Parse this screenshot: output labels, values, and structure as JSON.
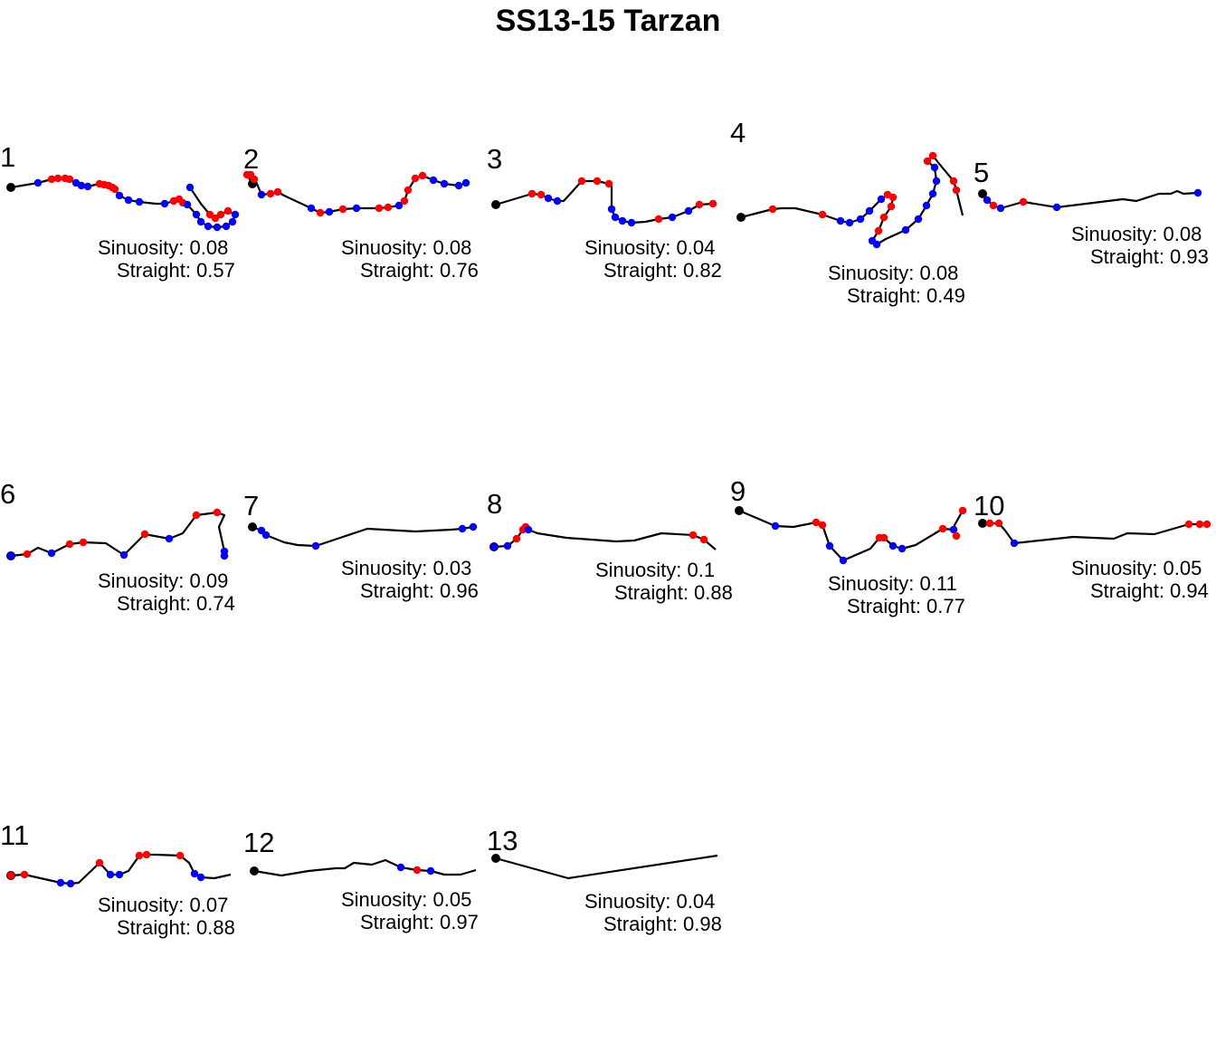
{
  "title": "SS13-15 Tarzan",
  "colors": {
    "path": "#000000",
    "start": "#000000",
    "red": "#ff0000",
    "blue": "#0000ff"
  },
  "chart_data": {
    "type": "scatter",
    "description_keys": "Each track is a sequence of points [x, y, state]; state: r=red, b=blue, k=path vertex only. Coordinates are in the arbitrary position units of the track plot, not pixels.",
    "panels": [
      {
        "label": "1",
        "sinuosity": "Sinuosity: 0.08",
        "straight": "Straight: 0.57",
        "track": [
          [
            0,
            0,
            "k"
          ],
          [
            30,
            -5,
            "b"
          ],
          [
            45,
            -9,
            "r"
          ],
          [
            52,
            -10,
            "r"
          ],
          [
            60,
            -10,
            "r"
          ],
          [
            65,
            -9,
            "r"
          ],
          [
            72,
            -5,
            "b"
          ],
          [
            78,
            -2,
            "b"
          ],
          [
            85,
            -1,
            "b"
          ],
          [
            98,
            -4,
            "r"
          ],
          [
            103,
            -3,
            "r"
          ],
          [
            108,
            -2,
            "r"
          ],
          [
            112,
            0,
            "r"
          ],
          [
            115,
            2,
            "r"
          ],
          [
            120,
            9,
            "b"
          ],
          [
            130,
            14,
            "b"
          ],
          [
            142,
            16,
            "b"
          ],
          [
            160,
            18,
            "k"
          ],
          [
            170,
            18,
            "b"
          ],
          [
            180,
            15,
            "r"
          ],
          [
            186,
            13,
            "r"
          ],
          [
            190,
            17,
            "r"
          ],
          [
            195,
            19,
            "b"
          ],
          [
            205,
            30,
            "b"
          ],
          [
            210,
            38,
            "b"
          ],
          [
            218,
            43,
            "b"
          ],
          [
            228,
            44,
            "b"
          ],
          [
            238,
            43,
            "b"
          ],
          [
            245,
            38,
            "b"
          ],
          [
            248,
            30,
            "b"
          ],
          [
            240,
            26,
            "r"
          ],
          [
            232,
            30,
            "r"
          ],
          [
            226,
            34,
            "r"
          ],
          [
            220,
            30,
            "r"
          ],
          [
            210,
            18,
            "k"
          ],
          [
            198,
            0,
            "b"
          ]
        ]
      },
      {
        "label": "2",
        "sinuosity": "Sinuosity: 0.08",
        "straight": "Straight: 0.76",
        "track": [
          [
            10,
            3,
            "k"
          ],
          [
            4,
            -7,
            "r"
          ],
          [
            8,
            -7,
            "r"
          ],
          [
            12,
            -2,
            "r"
          ],
          [
            15,
            3,
            "k"
          ],
          [
            20,
            15,
            "b"
          ],
          [
            30,
            14,
            "r"
          ],
          [
            38,
            12,
            "r"
          ],
          [
            45,
            16,
            "k"
          ],
          [
            75,
            30,
            "b"
          ],
          [
            85,
            35,
            "r"
          ],
          [
            95,
            34,
            "b"
          ],
          [
            110,
            31,
            "r"
          ],
          [
            125,
            30,
            "b"
          ],
          [
            140,
            30,
            "k"
          ],
          [
            150,
            30,
            "r"
          ],
          [
            160,
            29,
            "r"
          ],
          [
            172,
            27,
            "b"
          ],
          [
            178,
            22,
            "r"
          ],
          [
            182,
            10,
            "r"
          ],
          [
            190,
            -3,
            "r"
          ],
          [
            198,
            -6,
            "r"
          ],
          [
            210,
            -1,
            "b"
          ],
          [
            222,
            3,
            "b"
          ],
          [
            238,
            5,
            "b"
          ],
          [
            246,
            2,
            "b"
          ]
        ]
      },
      {
        "label": "3",
        "sinuosity": "Sinuosity: 0.04",
        "straight": "Straight: 0.82",
        "track": [
          [
            0,
            0,
            "k"
          ],
          [
            40,
            -12,
            "r"
          ],
          [
            50,
            -11,
            "r"
          ],
          [
            58,
            -7,
            "b"
          ],
          [
            68,
            -4,
            "b"
          ],
          [
            75,
            -4,
            "k"
          ],
          [
            95,
            -26,
            "r"
          ],
          [
            112,
            -26,
            "r"
          ],
          [
            125,
            -23,
            "r"
          ],
          [
            128,
            -20,
            "k"
          ],
          [
            128,
            5,
            "b"
          ],
          [
            132,
            14,
            "b"
          ],
          [
            140,
            18,
            "b"
          ],
          [
            150,
            20,
            "b"
          ],
          [
            165,
            19,
            "k"
          ],
          [
            180,
            16,
            "r"
          ],
          [
            195,
            14,
            "b"
          ],
          [
            213,
            7,
            "b"
          ],
          [
            225,
            0,
            "r"
          ],
          [
            240,
            -1,
            "r"
          ],
          [
            244,
            0,
            "k"
          ]
        ]
      },
      {
        "label": "4",
        "sinuosity": "Sinuosity: 0.08",
        "straight": "Straight: 0.49",
        "track": [
          [
            0,
            0,
            "k"
          ],
          [
            35,
            -9,
            "r"
          ],
          [
            45,
            -10,
            "k"
          ],
          [
            60,
            -10,
            "k"
          ],
          [
            90,
            -3,
            "r"
          ],
          [
            110,
            4,
            "b"
          ],
          [
            120,
            6,
            "b"
          ],
          [
            132,
            2,
            "b"
          ],
          [
            142,
            -7,
            "b"
          ],
          [
            155,
            -20,
            "b"
          ],
          [
            162,
            -25,
            "r"
          ],
          [
            168,
            -22,
            "r"
          ],
          [
            166,
            -12,
            "r"
          ],
          [
            158,
            0,
            "r"
          ],
          [
            152,
            15,
            "r"
          ],
          [
            145,
            26,
            "b"
          ],
          [
            150,
            30,
            "b"
          ],
          [
            160,
            24,
            "k"
          ],
          [
            182,
            14,
            "b"
          ],
          [
            196,
            2,
            "b"
          ],
          [
            205,
            -13,
            "b"
          ],
          [
            212,
            -26,
            "b"
          ],
          [
            216,
            -40,
            "b"
          ],
          [
            214,
            -55,
            "b"
          ],
          [
            206,
            -62,
            "r"
          ],
          [
            212,
            -68,
            "r"
          ],
          [
            220,
            -58,
            "k"
          ],
          [
            235,
            -40,
            "r"
          ],
          [
            238,
            -30,
            "r"
          ],
          [
            245,
            -2,
            "k"
          ]
        ]
      },
      {
        "label": "5",
        "sinuosity": "Sinuosity: 0.08",
        "straight": "Straight: 0.93",
        "track": [
          [
            0,
            0,
            "k"
          ],
          [
            5,
            7,
            "b"
          ],
          [
            12,
            13,
            "r"
          ],
          [
            20,
            16,
            "b"
          ],
          [
            45,
            9,
            "r"
          ],
          [
            82,
            15,
            "b"
          ],
          [
            155,
            6,
            "k"
          ],
          [
            170,
            8,
            "k"
          ],
          [
            195,
            0,
            "k"
          ],
          [
            208,
            0,
            "k"
          ],
          [
            215,
            -3,
            "k"
          ],
          [
            222,
            0,
            "k"
          ],
          [
            238,
            -1,
            "b"
          ]
        ]
      },
      {
        "label": "6",
        "sinuosity": "Sinuosity: 0.09",
        "straight": "Straight: 0.74",
        "track": [
          [
            0,
            0,
            "b"
          ],
          [
            18,
            -2,
            "r"
          ],
          [
            30,
            -9,
            "k"
          ],
          [
            45,
            -3,
            "b"
          ],
          [
            65,
            -13,
            "r"
          ],
          [
            80,
            -15,
            "r"
          ],
          [
            105,
            -14,
            "k"
          ],
          [
            125,
            -1,
            "b"
          ],
          [
            148,
            -24,
            "r"
          ],
          [
            175,
            -19,
            "b"
          ],
          [
            190,
            -25,
            "k"
          ],
          [
            205,
            -45,
            "r"
          ],
          [
            228,
            -48,
            "r"
          ],
          [
            236,
            -45,
            "k"
          ],
          [
            230,
            -32,
            "k"
          ],
          [
            236,
            -5,
            "b"
          ],
          [
            236,
            0,
            "b"
          ]
        ]
      },
      {
        "label": "7",
        "sinuosity": "Sinuosity: 0.03",
        "straight": "Straight: 0.96",
        "track": [
          [
            0,
            0,
            "k"
          ],
          [
            10,
            4,
            "b"
          ],
          [
            15,
            9,
            "b"
          ],
          [
            35,
            17,
            "k"
          ],
          [
            50,
            20,
            "k"
          ],
          [
            70,
            21,
            "b"
          ],
          [
            127,
            2,
            "k"
          ],
          [
            180,
            5,
            "k"
          ],
          [
            220,
            3,
            "k"
          ],
          [
            232,
            2,
            "b"
          ],
          [
            244,
            0,
            "b"
          ]
        ]
      },
      {
        "label": "8",
        "sinuosity": "Sinuosity: 0.1",
        "straight": "Straight: 0.88",
        "track": [
          [
            0,
            22,
            "b"
          ],
          [
            15,
            21,
            "b"
          ],
          [
            25,
            13,
            "r"
          ],
          [
            32,
            3,
            "r"
          ],
          [
            35,
            0,
            "r"
          ],
          [
            38,
            3,
            "b"
          ],
          [
            48,
            7,
            "k"
          ],
          [
            80,
            12,
            "k"
          ],
          [
            135,
            16,
            "k"
          ],
          [
            155,
            15,
            "k"
          ],
          [
            185,
            7,
            "k"
          ],
          [
            220,
            9,
            "r"
          ],
          [
            232,
            14,
            "r"
          ],
          [
            245,
            25,
            "k"
          ]
        ]
      },
      {
        "label": "9",
        "sinuosity": "Sinuosity: 0.11",
        "straight": "Straight: 0.77",
        "track": [
          [
            0,
            0,
            "k"
          ],
          [
            40,
            17,
            "b"
          ],
          [
            60,
            18,
            "k"
          ],
          [
            85,
            13,
            "r"
          ],
          [
            92,
            16,
            "r"
          ],
          [
            100,
            39,
            "b"
          ],
          [
            115,
            55,
            "b"
          ],
          [
            145,
            42,
            "k"
          ],
          [
            155,
            30,
            "r"
          ],
          [
            160,
            30,
            "r"
          ],
          [
            170,
            39,
            "b"
          ],
          [
            180,
            42,
            "b"
          ],
          [
            195,
            38,
            "k"
          ],
          [
            225,
            20,
            "r"
          ],
          [
            237,
            21,
            "b"
          ],
          [
            240,
            28,
            "r"
          ],
          [
            238,
            16,
            "k"
          ],
          [
            247,
            0,
            "r"
          ]
        ]
      },
      {
        "label": "10",
        "sinuosity": "Sinuosity: 0.05",
        "straight": "Straight: 0.94",
        "track": [
          [
            0,
            0,
            "k"
          ],
          [
            8,
            0,
            "r"
          ],
          [
            18,
            0,
            "r"
          ],
          [
            25,
            8,
            "k"
          ],
          [
            35,
            22,
            "b"
          ],
          [
            100,
            15,
            "k"
          ],
          [
            145,
            17,
            "k"
          ],
          [
            160,
            11,
            "k"
          ],
          [
            190,
            12,
            "k"
          ],
          [
            228,
            1,
            "r"
          ],
          [
            240,
            1,
            "r"
          ],
          [
            248,
            1,
            "r"
          ]
        ]
      },
      {
        "label": "11",
        "sinuosity": "Sinuosity: 0.07",
        "straight": "Straight: 0.88",
        "track": [
          [
            0,
            0,
            "r"
          ],
          [
            15,
            -1,
            "r"
          ],
          [
            55,
            8,
            "b"
          ],
          [
            66,
            9,
            "b"
          ],
          [
            75,
            8,
            "k"
          ],
          [
            98,
            -14,
            "r"
          ],
          [
            110,
            -1,
            "b"
          ],
          [
            120,
            -1,
            "b"
          ],
          [
            130,
            -5,
            "k"
          ],
          [
            142,
            -22,
            "r"
          ],
          [
            150,
            -23,
            "r"
          ],
          [
            160,
            -23,
            "k"
          ],
          [
            187,
            -22,
            "r"
          ],
          [
            197,
            -14,
            "k"
          ],
          [
            203,
            -2,
            "b"
          ],
          [
            210,
            2,
            "b"
          ],
          [
            225,
            3,
            "k"
          ],
          [
            243,
            -1,
            "k"
          ]
        ]
      },
      {
        "label": "12",
        "sinuosity": "Sinuosity: 0.05",
        "straight": "Straight: 0.97",
        "track": [
          [
            0,
            0,
            "k"
          ],
          [
            30,
            5,
            "k"
          ],
          [
            60,
            0,
            "k"
          ],
          [
            90,
            -3,
            "k"
          ],
          [
            100,
            -3,
            "k"
          ],
          [
            110,
            -9,
            "k"
          ],
          [
            130,
            -7,
            "k"
          ],
          [
            145,
            -12,
            "k"
          ],
          [
            162,
            -4,
            "b"
          ],
          [
            180,
            -1,
            "r"
          ],
          [
            195,
            0,
            "b"
          ],
          [
            210,
            4,
            "k"
          ],
          [
            228,
            4,
            "k"
          ],
          [
            245,
            -1,
            "k"
          ]
        ]
      },
      {
        "label": "13",
        "sinuosity": "Sinuosity: 0.04",
        "straight": "Straight: 0.98",
        "track": [
          [
            0,
            0,
            "k"
          ],
          [
            80,
            22,
            "k"
          ],
          [
            245,
            -3,
            "k"
          ]
        ]
      }
    ]
  }
}
